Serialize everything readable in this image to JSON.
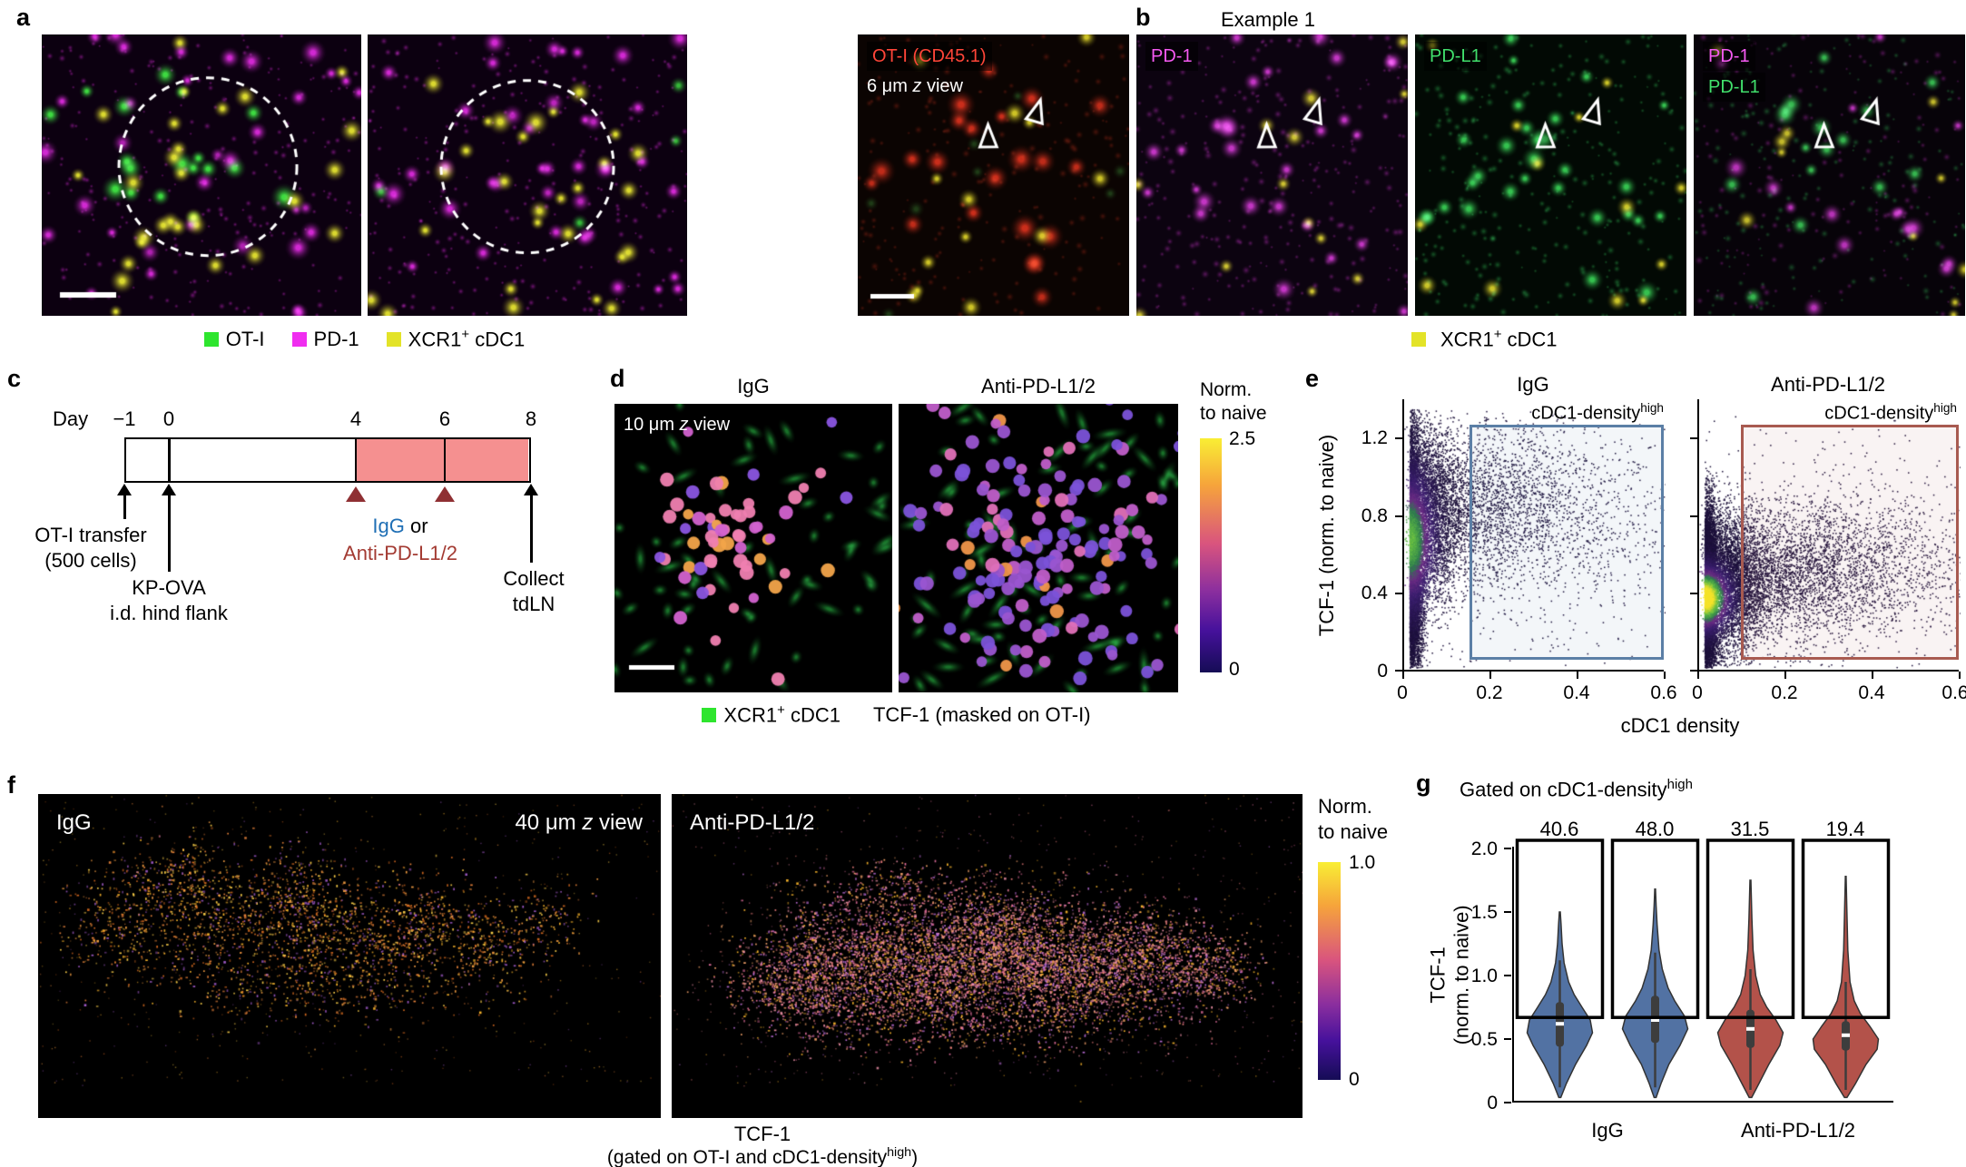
{
  "panel_a": {
    "label": "a",
    "legend": {
      "item1_color": "#2ee52e",
      "item1_label": "OT-I",
      "item2_color": "#f02df0",
      "item2_label": "PD-1",
      "item3_color": "#e3e328",
      "item3_pre": "XCR1",
      "item3_sup": "+",
      "item3_post": " cDC1"
    }
  },
  "panel_b": {
    "label": "b",
    "title": "Example 1",
    "img1_line1": "OT-I (CD45.1)",
    "img1_line1_color": "#ff4538",
    "img1_line2_pre": "6 μm ",
    "img1_line2_z": "z",
    "img1_line2_post": " view",
    "img2_label": "PD-1",
    "img2_label_color": "#f55af2",
    "img3_label": "PD-L1",
    "img3_label_color": "#41e06c",
    "img4_label1": "PD-1",
    "img4_label1_color": "#f55af2",
    "img4_label2": "PD-L1",
    "img4_label2_color": "#41e06c",
    "legend_color": "#e3e328",
    "legend_pre": "XCR1",
    "legend_sup": "+",
    "legend_post": " cDC1"
  },
  "panel_c": {
    "label": "c",
    "axis_label": "Day",
    "tick1": "−1",
    "tick2": "0",
    "tick3": "4",
    "tick4": "6",
    "tick5": "8",
    "treatment_fill": "#f59090",
    "event1_line1": "OT-I transfer",
    "event1_line2": "(500 cells)",
    "event2_line1": "KP-OVA",
    "event2_line2": "i.d. hind flank",
    "treat_word1": "IgG",
    "treat_word1_color": "#1f6fb5",
    "treat_word2": " or",
    "treat_line2": "Anti-PD-L1/2",
    "treat_line2_color": "#a33a32",
    "event3_line1": "Collect",
    "event3_line2": "tdLN"
  },
  "panel_d": {
    "label": "d",
    "img1_title": "IgG",
    "img2_title": "Anti-PD-L1/2",
    "overlay_pre": "10 μm ",
    "overlay_z": "z",
    "overlay_post": " view",
    "cbar_title1": "Norm.",
    "cbar_title2": "to naive",
    "cbar_max": "2.5",
    "cbar_min": "0",
    "legend1_color": "#2ee52e",
    "legend1_pre": "XCR1",
    "legend1_sup": "+",
    "legend1_post": " cDC1",
    "legend2": "TCF-1 (masked on OT-I)"
  },
  "panel_e": {
    "label": "e"
  },
  "panel_f": {
    "label": "f",
    "img1_label": "IgG",
    "img1_overlay_pre": "40 μm ",
    "img1_overlay_z": "z",
    "img1_overlay_post": " view",
    "img2_label": "Anti-PD-L1/2",
    "cbar_title1": "Norm.",
    "cbar_title2": "to naive",
    "cbar_max": "1.0",
    "cbar_min": "0",
    "caption1": "TCF-1",
    "caption2_pre": "(gated on OT-I and cDC1-density",
    "caption2_sup": "high",
    "caption2_post": ")"
  },
  "panel_g": {
    "label": "g"
  },
  "chart_data": [
    {
      "id": "scatter_igg",
      "type": "scatter",
      "title": "IgG",
      "xlabel": "cDC1 density",
      "ylabel": "TCF-1 (norm. to naive)",
      "xlim": [
        0,
        0.6
      ],
      "ylim": [
        0,
        1.4
      ],
      "xticks": [
        "0",
        "0.2",
        "0.4",
        "0.6"
      ],
      "yticks": [
        "1.2",
        "0.8",
        "0.4",
        "0"
      ],
      "grid": false,
      "gate": {
        "label_pre": "cDC1-density",
        "label_sup": "high",
        "x0": 0.155,
        "x1": 0.6,
        "y0": 0.06,
        "y1": 1.27,
        "color": "#5b7fa6",
        "fill": "rgba(91,127,166,0.07)"
      },
      "points_model": {
        "clusters": [
          {
            "cx": 0.012,
            "cy": 0.6,
            "sx": 0.014,
            "sy": 0.3,
            "n": 9000,
            "absx": true
          },
          {
            "cx": 0.04,
            "cy": 0.8,
            "sx": 0.045,
            "sy": 0.22,
            "n": 2600,
            "absx": true
          },
          {
            "cx": 0.16,
            "cy": 0.85,
            "sx": 0.12,
            "sy": 0.2,
            "n": 2000
          },
          {
            "cx": 0.34,
            "cy": 0.82,
            "sx": 0.16,
            "sy": 0.22,
            "n": 800
          },
          {
            "cx": 0.3,
            "cy": 0.65,
            "sx": 0.2,
            "sy": 0.38,
            "n": 500
          }
        ],
        "hotspot": {
          "x": 0.012,
          "y": 0.68,
          "sx": 0.05,
          "sy": 0.3,
          "amp": 0.8
        }
      }
    },
    {
      "id": "scatter_anti_pdl12",
      "type": "scatter",
      "title": "Anti-PD-L1/2",
      "xlabel": "cDC1 density",
      "ylabel": "TCF-1 (norm. to naive)",
      "xlim": [
        0,
        0.6
      ],
      "ylim": [
        0,
        1.4
      ],
      "xticks": [
        "0",
        "0.2",
        "0.4",
        "0.6"
      ],
      "yticks": [
        "1.2",
        "0.8",
        "0.4",
        "0"
      ],
      "grid": false,
      "gate": {
        "label_pre": "cDC1-density",
        "label_sup": "high",
        "x0": 0.1,
        "x1": 0.6,
        "y0": 0.06,
        "y1": 1.27,
        "color": "#a85a50",
        "fill": "rgba(168,90,80,0.07)"
      },
      "points_model": {
        "clusters": [
          {
            "cx": 0.012,
            "cy": 0.42,
            "sx": 0.014,
            "sy": 0.2,
            "n": 9500,
            "absx": true
          },
          {
            "cx": 0.045,
            "cy": 0.45,
            "sx": 0.05,
            "sy": 0.18,
            "n": 3000,
            "absx": true
          },
          {
            "cx": 0.18,
            "cy": 0.5,
            "sx": 0.12,
            "sy": 0.17,
            "n": 2600
          },
          {
            "cx": 0.38,
            "cy": 0.55,
            "sx": 0.15,
            "sy": 0.17,
            "n": 1200
          },
          {
            "cx": 0.3,
            "cy": 0.6,
            "sx": 0.2,
            "sy": 0.35,
            "n": 500
          }
        ],
        "hotspot": {
          "x": 0.012,
          "y": 0.38,
          "sx": 0.05,
          "sy": 0.14,
          "amp": 1.15
        }
      }
    },
    {
      "id": "violin_tcf1",
      "type": "violin",
      "title_pre": "Gated on cDC1-density",
      "title_sup": "high",
      "ylabel_line1": "TCF-1",
      "ylabel_line2": "(norm. to naive)",
      "ylim": [
        0,
        2.0
      ],
      "yticks": [
        "2.0",
        "1.5",
        "1.0",
        "0.5",
        "0"
      ],
      "gate_threshold": 0.67,
      "group1": "IgG",
      "group2": "Anti-PD-L1/2",
      "violins": [
        {
          "group": "IgG",
          "pct_in_gate": "40.6",
          "color": "#5272a3",
          "profile": [
            [
              0.04,
              0.03
            ],
            [
              0.15,
              0.2
            ],
            [
              0.3,
              0.48
            ],
            [
              0.45,
              0.82
            ],
            [
              0.55,
              1.0
            ],
            [
              0.65,
              0.93
            ],
            [
              0.75,
              0.68
            ],
            [
              0.85,
              0.44
            ],
            [
              0.95,
              0.27
            ],
            [
              1.1,
              0.13
            ],
            [
              1.25,
              0.07
            ],
            [
              1.4,
              0.04
            ],
            [
              1.5,
              0.015
            ]
          ],
          "box": {
            "lo": 0.12,
            "q1": 0.44,
            "med": 0.62,
            "q3": 0.79,
            "hi": 1.12
          }
        },
        {
          "group": "IgG",
          "pct_in_gate": "48.0",
          "color": "#5272a3",
          "profile": [
            [
              0.04,
              0.03
            ],
            [
              0.15,
              0.18
            ],
            [
              0.3,
              0.42
            ],
            [
              0.45,
              0.76
            ],
            [
              0.58,
              1.0
            ],
            [
              0.68,
              0.9
            ],
            [
              0.8,
              0.6
            ],
            [
              0.9,
              0.4
            ],
            [
              1.05,
              0.22
            ],
            [
              1.2,
              0.12
            ],
            [
              1.4,
              0.06
            ],
            [
              1.55,
              0.03
            ],
            [
              1.68,
              0.012
            ]
          ],
          "box": {
            "lo": 0.12,
            "q1": 0.47,
            "med": 0.65,
            "q3": 0.84,
            "hi": 1.18
          }
        },
        {
          "group": "Anti-PD-L1/2",
          "pct_in_gate": "31.5",
          "color": "#b3524a",
          "profile": [
            [
              0.04,
              0.04
            ],
            [
              0.15,
              0.26
            ],
            [
              0.3,
              0.56
            ],
            [
              0.45,
              0.9
            ],
            [
              0.55,
              1.0
            ],
            [
              0.65,
              0.78
            ],
            [
              0.75,
              0.5
            ],
            [
              0.85,
              0.3
            ],
            [
              1.0,
              0.16
            ],
            [
              1.2,
              0.08
            ],
            [
              1.45,
              0.045
            ],
            [
              1.75,
              0.015
            ]
          ],
          "box": {
            "lo": 0.1,
            "q1": 0.43,
            "med": 0.58,
            "q3": 0.73,
            "hi": 1.05
          }
        },
        {
          "group": "Anti-PD-L1/2",
          "pct_in_gate": "19.4",
          "color": "#b3524a",
          "profile": [
            [
              0.04,
              0.04
            ],
            [
              0.15,
              0.3
            ],
            [
              0.3,
              0.62
            ],
            [
              0.42,
              0.96
            ],
            [
              0.5,
              1.0
            ],
            [
              0.6,
              0.74
            ],
            [
              0.7,
              0.45
            ],
            [
              0.8,
              0.26
            ],
            [
              0.95,
              0.13
            ],
            [
              1.2,
              0.065
            ],
            [
              1.5,
              0.035
            ],
            [
              1.78,
              0.012
            ]
          ],
          "box": {
            "lo": 0.1,
            "q1": 0.41,
            "med": 0.53,
            "q3": 0.64,
            "hi": 0.95
          }
        }
      ]
    }
  ]
}
